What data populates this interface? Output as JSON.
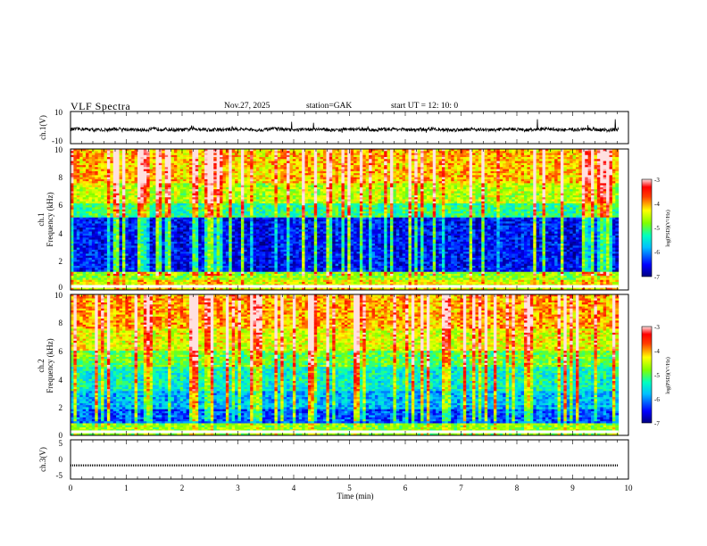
{
  "header": {
    "title": "VLF  Spectra",
    "date": "Nov.27, 2025",
    "station": "station=GAK",
    "start": "start  UT  =   12: 10: 0"
  },
  "colors": {
    "colormap": [
      "#000080",
      "#0000ff",
      "#00a0ff",
      "#00ffff",
      "#00ff80",
      "#80ff00",
      "#ffff00",
      "#ff8000",
      "#ff0000",
      "#ffb0b0"
    ]
  },
  "chart_data": [
    {
      "type": "line",
      "name": "ch1-waveform",
      "ylabel": "ch.1(V)",
      "ylim": [
        -10,
        10
      ],
      "yticks": [
        "10",
        "-10"
      ],
      "xlim": [
        0,
        10
      ],
      "baseline": 0
    },
    {
      "type": "heatmap",
      "name": "ch1-spectrogram",
      "ylabel_channel": "ch.1",
      "ylabel": "Frequency (kHz)",
      "xlim": [
        0,
        10
      ],
      "ylim": [
        0,
        10
      ],
      "yticks": [
        "0",
        "2",
        "4",
        "6",
        "8",
        "10"
      ],
      "data_end_min": 9.82,
      "colorbar": {
        "label": "log(PSD)(V²/Hz)",
        "ticks": [
          "-3",
          "-4",
          "-5",
          "-6",
          "-7"
        ],
        "range": [
          -7,
          -3
        ]
      }
    },
    {
      "type": "heatmap",
      "name": "ch2-spectrogram",
      "ylabel_channel": "ch.2",
      "ylabel": "Frequency (kHz)",
      "xlim": [
        0,
        10
      ],
      "ylim": [
        0,
        10
      ],
      "yticks": [
        "0",
        "2",
        "4",
        "6",
        "8",
        "10"
      ],
      "data_end_min": 9.82,
      "colorbar": {
        "label": "log(PSD)(V²/Hz)",
        "ticks": [
          "-3",
          "-4",
          "-5",
          "-6",
          "-7"
        ],
        "range": [
          -7,
          -3
        ]
      }
    },
    {
      "type": "line",
      "name": "ch3-waveform",
      "ylabel": "ch.3(V)",
      "ylim": [
        -5,
        5
      ],
      "yticks": [
        "5",
        "0",
        "-5"
      ],
      "xlim": [
        0,
        10
      ],
      "xlabel": "Time  (min)",
      "xticks": [
        "0",
        "1",
        "2",
        "3",
        "4",
        "5",
        "6",
        "7",
        "8",
        "9",
        "10"
      ],
      "baseline": -1.5
    }
  ]
}
